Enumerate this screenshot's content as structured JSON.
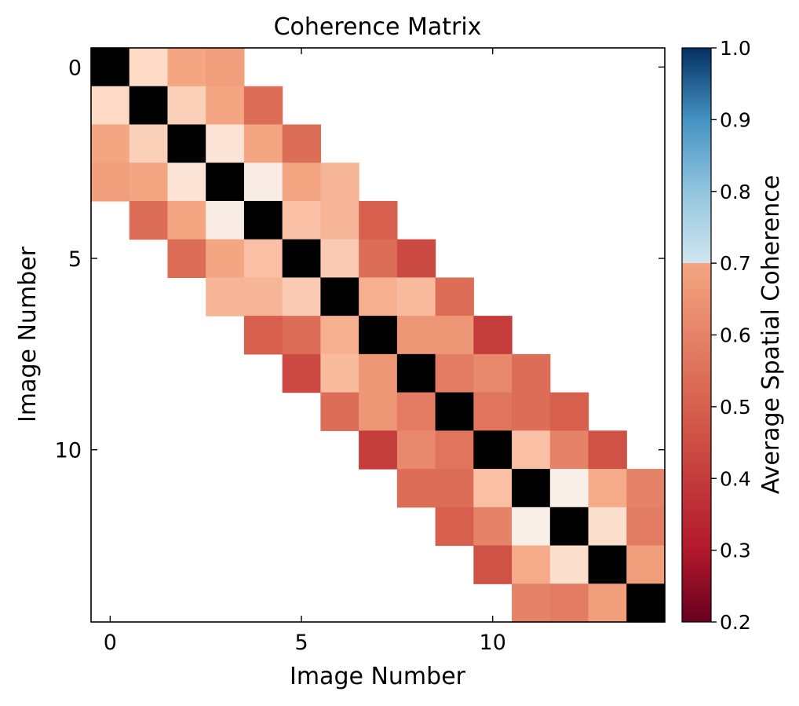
{
  "chart_data": {
    "type": "heatmap",
    "title": "Coherence Matrix",
    "xlabel": "Image Number",
    "ylabel": "Image Number",
    "x_ticks": [
      0,
      5,
      10
    ],
    "y_ticks": [
      0,
      5,
      10
    ],
    "n": 15,
    "colorbar": {
      "label": "Average Spatial Coherence",
      "min": 0.2,
      "max": 1.0,
      "ticks": [
        "0.2",
        "0.3",
        "0.4",
        "0.5",
        "0.6",
        "0.7",
        "0.8",
        "0.9",
        "1.0"
      ]
    },
    "diagonal_color": "#000000",
    "matrix": [
      [
        null,
        0.6,
        0.5,
        0.49,
        null,
        null,
        null,
        null,
        null,
        null,
        null,
        null,
        null,
        null,
        null
      ],
      [
        0.6,
        null,
        0.58,
        0.5,
        0.42,
        null,
        null,
        null,
        null,
        null,
        null,
        null,
        null,
        null,
        null
      ],
      [
        0.5,
        0.58,
        null,
        0.63,
        0.5,
        0.42,
        null,
        null,
        null,
        null,
        null,
        null,
        null,
        null,
        null
      ],
      [
        0.49,
        0.5,
        0.63,
        null,
        0.66,
        0.5,
        0.53,
        null,
        null,
        null,
        null,
        null,
        null,
        null,
        null
      ],
      [
        null,
        0.42,
        0.5,
        0.66,
        null,
        0.55,
        0.53,
        0.4,
        null,
        null,
        null,
        null,
        null,
        null,
        null
      ],
      [
        null,
        null,
        0.42,
        0.5,
        0.55,
        null,
        0.57,
        0.42,
        0.37,
        null,
        null,
        null,
        null,
        null,
        null
      ],
      [
        null,
        null,
        null,
        0.53,
        0.53,
        0.57,
        null,
        0.52,
        0.54,
        0.42,
        null,
        null,
        null,
        null,
        null
      ],
      [
        null,
        null,
        null,
        null,
        0.4,
        0.42,
        0.52,
        null,
        0.48,
        0.48,
        0.35,
        null,
        null,
        null,
        null
      ],
      [
        null,
        null,
        null,
        null,
        null,
        0.37,
        0.54,
        0.48,
        null,
        0.44,
        0.46,
        0.42,
        null,
        null,
        null
      ],
      [
        null,
        null,
        null,
        null,
        null,
        null,
        0.42,
        0.48,
        0.44,
        null,
        0.43,
        0.42,
        0.4,
        null,
        null
      ],
      [
        null,
        null,
        null,
        null,
        null,
        null,
        null,
        0.35,
        0.46,
        0.43,
        null,
        0.55,
        0.45,
        0.38,
        null
      ],
      [
        null,
        null,
        null,
        null,
        null,
        null,
        null,
        null,
        0.42,
        0.42,
        0.55,
        null,
        0.67,
        0.51,
        0.45
      ],
      [
        null,
        null,
        null,
        null,
        null,
        null,
        null,
        null,
        null,
        0.4,
        0.45,
        0.67,
        null,
        0.61,
        0.44
      ],
      [
        null,
        null,
        null,
        null,
        null,
        null,
        null,
        null,
        null,
        null,
        0.38,
        0.51,
        0.61,
        null,
        0.49
      ],
      [
        null,
        null,
        null,
        null,
        null,
        null,
        null,
        null,
        null,
        null,
        null,
        0.45,
        0.44,
        0.49,
        null
      ]
    ]
  }
}
